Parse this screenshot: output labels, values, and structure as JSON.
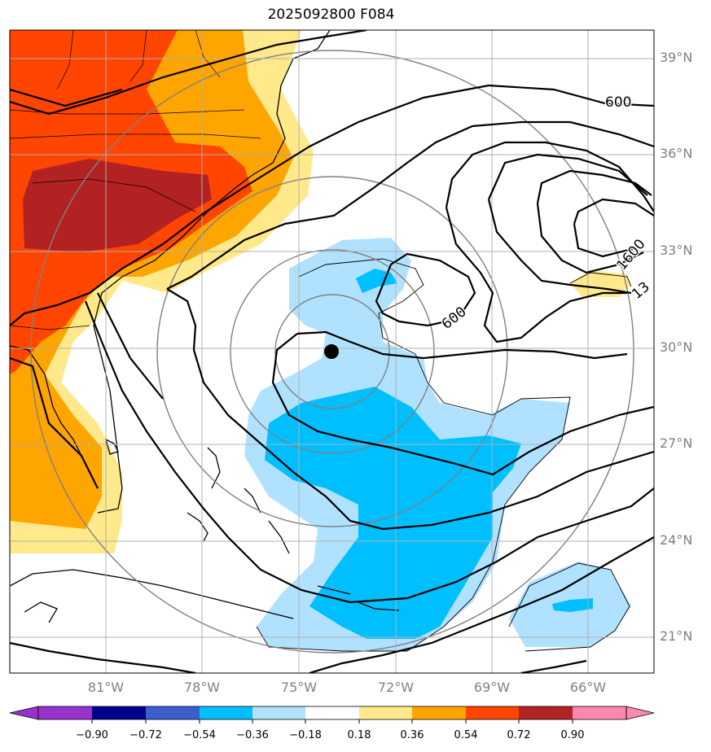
{
  "title": "2025092800 F084",
  "map": {
    "latitudes": [
      {
        "label": "39°N"
      },
      {
        "label": "36°N"
      },
      {
        "label": "33°N"
      },
      {
        "label": "30°N"
      },
      {
        "label": "27°N"
      },
      {
        "label": "24°N"
      },
      {
        "label": "21°N"
      }
    ],
    "longitudes": [
      {
        "label": "81°W"
      },
      {
        "label": "78°W"
      },
      {
        "label": "75°W"
      },
      {
        "label": "72°W"
      },
      {
        "label": "69°W"
      },
      {
        "label": "66°W"
      }
    ],
    "contour_labels": [
      "600",
      "600",
      "1600",
      "13"
    ],
    "center_marker": "storm-center-dot"
  },
  "colorbar": {
    "ticks": [
      "−0.90",
      "−0.72",
      "−0.54",
      "−0.36",
      "−0.18",
      "0.18",
      "0.36",
      "0.54",
      "0.72",
      "0.90"
    ],
    "colors": [
      "#9932cc",
      "#00008b",
      "#3a5fcd",
      "#00bfff",
      "#b0e2ff",
      "#ffffff",
      "#ffe98a",
      "#ffa500",
      "#ff4500",
      "#b22222",
      "#ff88b0"
    ]
  }
}
